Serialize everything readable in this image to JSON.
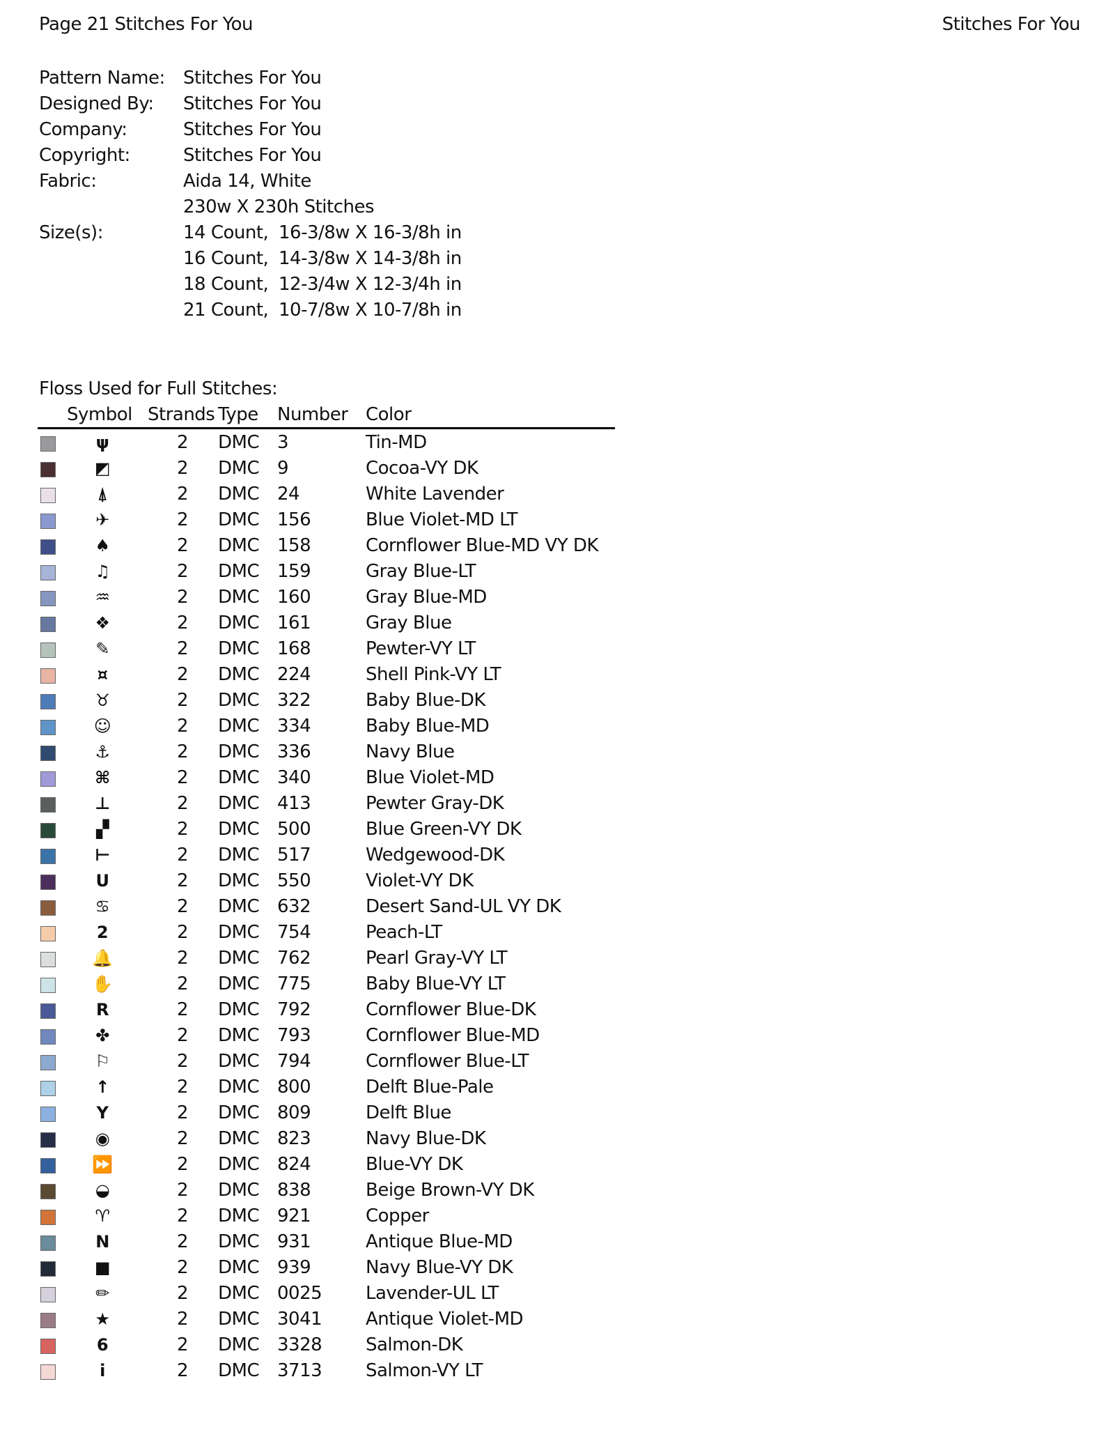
{
  "header": {
    "left": "Page 21  Stitches For You",
    "right": "Stitches For You"
  },
  "meta": [
    {
      "label": "Pattern Name:",
      "value": "Stitches For You"
    },
    {
      "label": "Designed By:",
      "value": "Stitches For You"
    },
    {
      "label": "Company:",
      "value": "Stitches For You"
    },
    {
      "label": "Copyright:",
      "value": "Stitches For You"
    },
    {
      "label": "Fabric:",
      "value": "Aida 14, White"
    },
    {
      "label": "",
      "value": "230w X 230h Stitches"
    }
  ],
  "sizes_label": "Size(s):",
  "sizes": [
    {
      "count": "14 Count,",
      "dims": "16-3/8w X 16-3/8h in"
    },
    {
      "count": "16 Count,",
      "dims": "14-3/8w X 14-3/8h in"
    },
    {
      "count": "18 Count,",
      "dims": "12-3/4w X 12-3/4h in"
    },
    {
      "count": "21 Count,",
      "dims": "10-7/8w X 10-7/8h in"
    }
  ],
  "floss_title": "Floss Used for Full Stitches:",
  "columns": [
    "Symbol",
    "Strands",
    "Type",
    "Number",
    "Color"
  ],
  "rows": [
    {
      "swatch": "#9a9a9c",
      "symbol": "ψ",
      "icon": "psi-icon",
      "strands": "2",
      "type": "DMC",
      "number": "3",
      "color": "Tin-MD"
    },
    {
      "swatch": "#4a3030",
      "symbol": "◩",
      "icon": "slashed-triangle-icon",
      "strands": "2",
      "type": "DMC",
      "number": "9",
      "color": "Cocoa-VY DK"
    },
    {
      "swatch": "#ece0e8",
      "symbol": "⍋",
      "icon": "triangle-icon",
      "strands": "2",
      "type": "DMC",
      "number": "24",
      "color": "White Lavender"
    },
    {
      "swatch": "#8a9ad0",
      "symbol": "✈",
      "icon": "airplane-icon",
      "strands": "2",
      "type": "DMC",
      "number": "156",
      "color": "Blue Violet-MD LT"
    },
    {
      "swatch": "#3f4f8a",
      "symbol": "♠",
      "icon": "spade-icon",
      "strands": "2",
      "type": "DMC",
      "number": "158",
      "color": "Cornflower Blue-MD VY DK"
    },
    {
      "swatch": "#a6b4d8",
      "symbol": "♫",
      "icon": "music-note-icon",
      "strands": "2",
      "type": "DMC",
      "number": "159",
      "color": "Gray Blue-LT"
    },
    {
      "swatch": "#8596c0",
      "symbol": "♒",
      "icon": "aquarius-icon",
      "strands": "2",
      "type": "DMC",
      "number": "160",
      "color": "Gray Blue-MD"
    },
    {
      "swatch": "#66789f",
      "symbol": "❖",
      "icon": "diamond-cluster-icon",
      "strands": "2",
      "type": "DMC",
      "number": "161",
      "color": "Gray Blue"
    },
    {
      "swatch": "#b4c4bc",
      "symbol": "✎",
      "icon": "pill-icon",
      "strands": "2",
      "type": "DMC",
      "number": "168",
      "color": "Pewter-VY LT"
    },
    {
      "swatch": "#e8b4a4",
      "symbol": "¤",
      "icon": "gemini-icon",
      "strands": "2",
      "type": "DMC",
      "number": "224",
      "color": "Shell Pink-VY LT"
    },
    {
      "swatch": "#4e7cb8",
      "symbol": "♉",
      "icon": "taurus-icon",
      "strands": "2",
      "type": "DMC",
      "number": "322",
      "color": "Baby Blue-DK"
    },
    {
      "swatch": "#5e94c8",
      "symbol": "☺",
      "icon": "smiley-icon",
      "strands": "2",
      "type": "DMC",
      "number": "334",
      "color": "Baby Blue-MD"
    },
    {
      "swatch": "#304a70",
      "symbol": "⚓",
      "icon": "anchor-icon",
      "strands": "2",
      "type": "DMC",
      "number": "336",
      "color": "Navy Blue"
    },
    {
      "swatch": "#a09ad8",
      "symbol": "⌘",
      "icon": "command-icon",
      "strands": "2",
      "type": "DMC",
      "number": "340",
      "color": "Blue Violet-MD"
    },
    {
      "swatch": "#5a5e5c",
      "symbol": "⊥",
      "icon": "up-tack-icon",
      "strands": "2",
      "type": "DMC",
      "number": "413",
      "color": "Pewter Gray-DK"
    },
    {
      "swatch": "#2a4a3a",
      "symbol": "▞",
      "icon": "step-blocks-icon",
      "strands": "2",
      "type": "DMC",
      "number": "500",
      "color": "Blue Green-VY DK"
    },
    {
      "swatch": "#3a74a8",
      "symbol": "⊢",
      "icon": "i-beam-icon",
      "strands": "2",
      "type": "DMC",
      "number": "517",
      "color": "Wedgewood-DK"
    },
    {
      "swatch": "#4c2e5c",
      "symbol": "U",
      "icon": "letter-u-icon",
      "strands": "2",
      "type": "DMC",
      "number": "550",
      "color": "Violet-VY DK"
    },
    {
      "swatch": "#8a5c3e",
      "symbol": "♋",
      "icon": "cancer-icon",
      "strands": "2",
      "type": "DMC",
      "number": "632",
      "color": "Desert Sand-UL VY DK"
    },
    {
      "swatch": "#f4ccaa",
      "symbol": "2",
      "icon": "digit-two-icon",
      "strands": "2",
      "type": "DMC",
      "number": "754",
      "color": "Peach-LT"
    },
    {
      "swatch": "#dcdee0",
      "symbol": "🔔",
      "icon": "bell-icon",
      "strands": "2",
      "type": "DMC",
      "number": "762",
      "color": "Pearl Gray-VY LT"
    },
    {
      "swatch": "#cce4e8",
      "symbol": "✋",
      "icon": "hand-icon",
      "strands": "2",
      "type": "DMC",
      "number": "775",
      "color": "Baby Blue-VY LT"
    },
    {
      "swatch": "#4a5a98",
      "symbol": "R",
      "icon": "letter-r-icon",
      "strands": "2",
      "type": "DMC",
      "number": "792",
      "color": "Cornflower Blue-DK"
    },
    {
      "swatch": "#7088be",
      "symbol": "✤",
      "icon": "clover-icon",
      "strands": "2",
      "type": "DMC",
      "number": "793",
      "color": "Cornflower Blue-MD"
    },
    {
      "swatch": "#8caad0",
      "symbol": "⚐",
      "icon": "flag-icon",
      "strands": "2",
      "type": "DMC",
      "number": "794",
      "color": "Cornflower Blue-LT"
    },
    {
      "swatch": "#aed0e8",
      "symbol": "↑",
      "icon": "up-arrow-icon",
      "strands": "2",
      "type": "DMC",
      "number": "800",
      "color": "Delft Blue-Pale"
    },
    {
      "swatch": "#8cb0e0",
      "symbol": "Y",
      "icon": "letter-y-icon",
      "strands": "2",
      "type": "DMC",
      "number": "809",
      "color": "Delft Blue"
    },
    {
      "swatch": "#262e48",
      "symbol": "◉",
      "icon": "eye-icon",
      "strands": "2",
      "type": "DMC",
      "number": "823",
      "color": "Navy Blue-DK"
    },
    {
      "swatch": "#34609e",
      "symbol": "⏩",
      "icon": "fast-forward-icon",
      "strands": "2",
      "type": "DMC",
      "number": "824",
      "color": "Blue-VY DK"
    },
    {
      "swatch": "#5a4a32",
      "symbol": "◒",
      "icon": "half-circle-icon",
      "strands": "2",
      "type": "DMC",
      "number": "838",
      "color": "Beige Brown-VY DK"
    },
    {
      "swatch": "#d27438",
      "symbol": "♈",
      "icon": "aries-icon",
      "strands": "2",
      "type": "DMC",
      "number": "921",
      "color": "Copper"
    },
    {
      "swatch": "#6a8c9c",
      "symbol": "N",
      "icon": "letter-n-icon",
      "strands": "2",
      "type": "DMC",
      "number": "931",
      "color": "Antique Blue-MD"
    },
    {
      "swatch": "#222a38",
      "symbol": "■",
      "icon": "square-icon",
      "strands": "2",
      "type": "DMC",
      "number": "939",
      "color": "Navy Blue-VY DK"
    },
    {
      "swatch": "#d4d0dc",
      "symbol": "✏",
      "icon": "pencil-icon",
      "strands": "2",
      "type": "DMC",
      "number": "0025",
      "color": "Lavender-UL LT"
    },
    {
      "swatch": "#9a7c88",
      "symbol": "★",
      "icon": "star-icon",
      "strands": "2",
      "type": "DMC",
      "number": "3041",
      "color": "Antique Violet-MD"
    },
    {
      "swatch": "#d86460",
      "symbol": "6",
      "icon": "digit-six-icon",
      "strands": "2",
      "type": "DMC",
      "number": "3328",
      "color": "Salmon-DK"
    },
    {
      "swatch": "#f4d8d4",
      "symbol": "i",
      "icon": "letter-i-icon",
      "strands": "2",
      "type": "DMC",
      "number": "3713",
      "color": "Salmon-VY LT"
    }
  ]
}
